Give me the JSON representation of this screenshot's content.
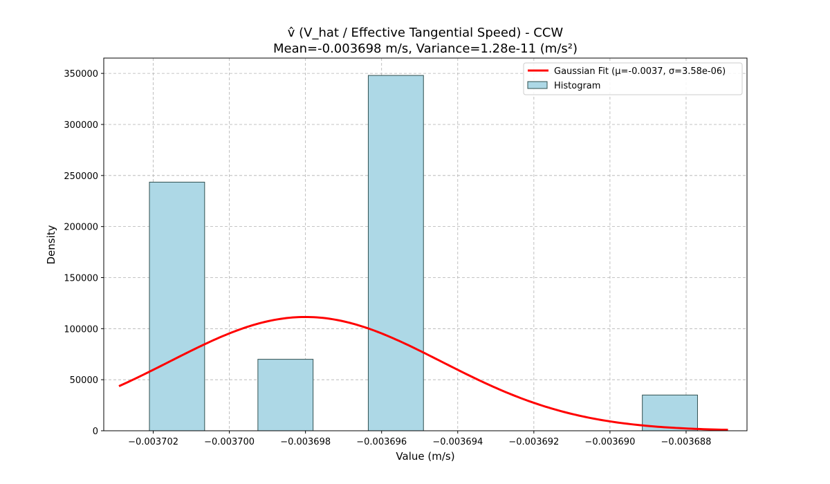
{
  "chart_data": {
    "type": "bar",
    "title_line1": "v̂ (V_hat / Effective Tangential Speed) - CCW",
    "title_line2": "Mean=-0.003698 m/s, Variance=1.28e-11 (m/s²)",
    "xlabel": "Value (m/s)",
    "ylabel": "Density",
    "xlim": [
      -0.0037033,
      -0.0036864
    ],
    "ylim": [
      0,
      365000
    ],
    "grid": true,
    "legend_position": "top-right",
    "x_ticks": [
      -0.003702,
      -0.0037,
      -0.003698,
      -0.003696,
      -0.003694,
      -0.003692,
      -0.00369,
      -0.003688
    ],
    "x_tick_labels": [
      "−0.003702",
      "−0.003700",
      "−0.003698",
      "−0.003696",
      "−0.003694",
      "−0.003692",
      "−0.003690",
      "−0.003688"
    ],
    "y_ticks": [
      0,
      50000,
      100000,
      150000,
      200000,
      250000,
      300000,
      350000
    ],
    "y_tick_labels": [
      "0",
      "50000",
      "100000",
      "150000",
      "200000",
      "250000",
      "300000",
      "350000"
    ],
    "histogram": {
      "name": "Histogram",
      "color": "#add8e6",
      "edge_color": "#2f4f4f",
      "bins": [
        {
          "x0": -0.0037021,
          "x1": -0.00370065,
          "density": 243500
        },
        {
          "x0": -0.00369925,
          "x1": -0.0036978,
          "density": 70000
        },
        {
          "x0": -0.00369635,
          "x1": -0.0036949,
          "density": 348000
        },
        {
          "x0": -0.00368915,
          "x1": -0.0036877,
          "density": 35000
        }
      ]
    },
    "gaussian_fit": {
      "name": "Gaussian Fit (μ=-0.0037, σ=3.58e-06)",
      "color": "#ff0000",
      "mu": -0.003698,
      "sigma": 3.58e-06,
      "x_range": [
        -0.0037029,
        -0.0036869
      ]
    }
  }
}
